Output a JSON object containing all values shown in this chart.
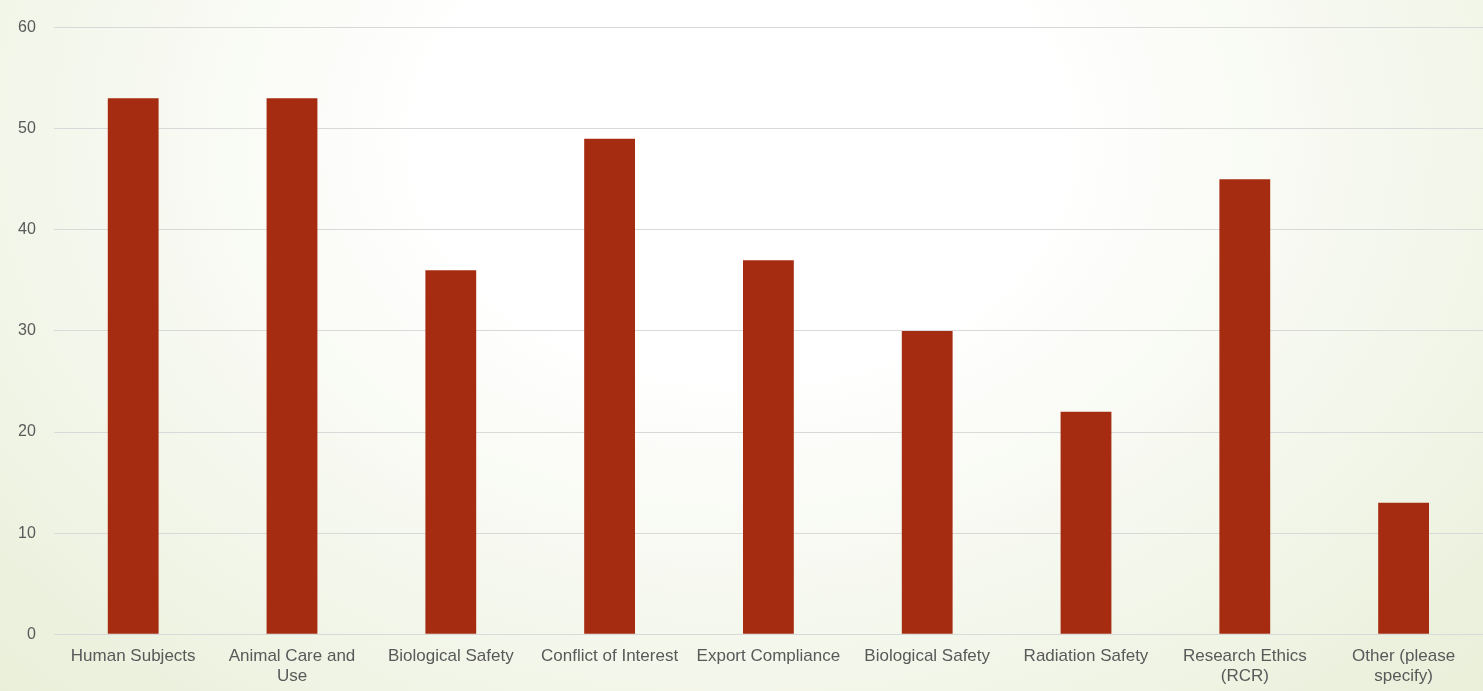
{
  "chart_data": {
    "type": "bar",
    "categories": [
      "Human Subjects",
      "Animal Care and Use",
      "Biological Safety",
      "Conflict of Interest",
      "Export Compliance",
      "Biological Safety",
      "Radiation Safety",
      "Research Ethics (RCR)",
      "Other (please specify)"
    ],
    "values": [
      53,
      53,
      36,
      49,
      37,
      30,
      22,
      45,
      13
    ],
    "color": "#a52c10",
    "ylim": [
      0,
      60
    ],
    "yticks": [
      0,
      10,
      20,
      30,
      40,
      50,
      60
    ],
    "grid": "y"
  }
}
